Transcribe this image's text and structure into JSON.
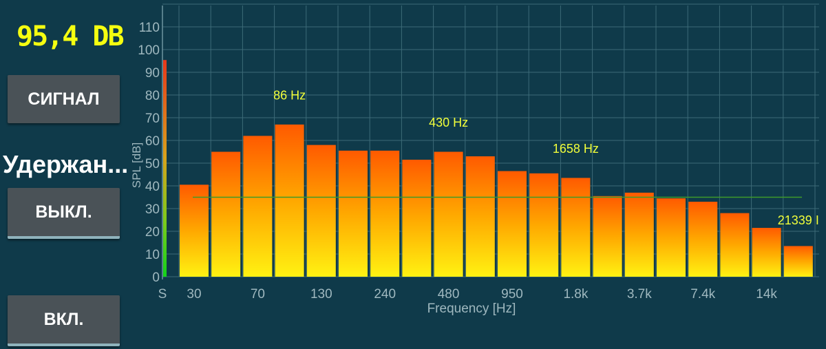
{
  "readout": {
    "level": "95,4 DB"
  },
  "controls": {
    "signal_button": "СИГНАЛ",
    "hold_label": "Удержан...",
    "off_button": "ВЫКЛ.",
    "on_button": "ВКЛ."
  },
  "colors": {
    "readout": "#f5ff10",
    "bar_top": "#ff5a00",
    "bar_bottom": "#fff212",
    "peak_label": "#f2ff3a",
    "threshold_line": "#3f9a2a",
    "background": "#0f3a4a"
  },
  "chart_data": {
    "type": "bar",
    "ylabel": "SPL [dB]",
    "xlabel": "Frequency [Hz]",
    "ylim": [
      0,
      120
    ],
    "y_ticks": [
      "0",
      "10",
      "20",
      "30",
      "40",
      "50",
      "60",
      "70",
      "80",
      "90",
      "100",
      "110"
    ],
    "x_tick_labels": [
      "30",
      "70",
      "130",
      "240",
      "480",
      "950",
      "1.8k",
      "3.7k",
      "7.4k",
      "14k"
    ],
    "s_meter": {
      "label": "S",
      "value": 95.4
    },
    "values": [
      40.5,
      55,
      62,
      67,
      58,
      55.5,
      55.5,
      51.5,
      55,
      53,
      46.5,
      45.5,
      43.5,
      35.5,
      37,
      34.5,
      33,
      28,
      21.5,
      13.5
    ],
    "threshold": 35,
    "peak_labels": [
      {
        "text": "86 Hz",
        "bar": 3,
        "value": 78
      },
      {
        "text": "430 Hz",
        "bar": 8,
        "value": 66
      },
      {
        "text": "1658 Hz",
        "bar": 12,
        "value": 54.5
      },
      {
        "text": "21339 I",
        "bar": 19,
        "value": 23
      }
    ],
    "grid": true
  }
}
